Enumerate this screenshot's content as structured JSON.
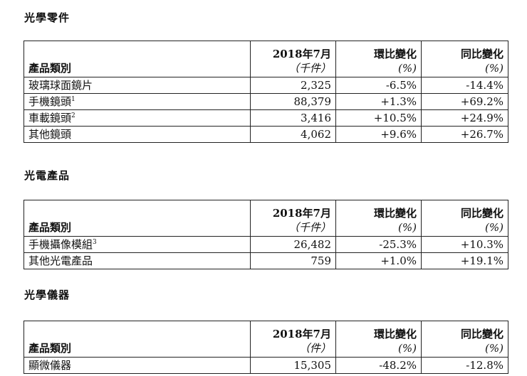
{
  "headers": {
    "category": "產品類別",
    "month": "2018年7月",
    "unit_k": "（千件）",
    "unit_pcs": "（件）",
    "mom": "環比變化",
    "yoy": "同比變化",
    "pct": "(%)"
  },
  "sections": [
    {
      "title": "光學零件",
      "rows": [
        {
          "name": "玻璃球面鏡片",
          "note": "",
          "value": "2,325",
          "mom": "-6.5%",
          "yoy": "-14.4%"
        },
        {
          "name": "手機鏡頭",
          "note": "1",
          "value": "88,379",
          "mom": "+1.3%",
          "yoy": "+69.2%"
        },
        {
          "name": "車載鏡頭",
          "note": "2",
          "value": "3,416",
          "mom": "+10.5%",
          "yoy": "+24.9%"
        },
        {
          "name": "其他鏡頭",
          "note": "",
          "value": "4,062",
          "mom": "+9.6%",
          "yoy": "+26.7%"
        }
      ]
    },
    {
      "title": "光電產品",
      "rows": [
        {
          "name": "手機攝像模組",
          "note": "3",
          "value": "26,482",
          "mom": "-25.3%",
          "yoy": "+10.3%"
        },
        {
          "name": "其他光電產品",
          "note": "",
          "value": "759",
          "mom": "+1.0%",
          "yoy": "+19.1%"
        }
      ]
    },
    {
      "title": "光學儀器",
      "rows": [
        {
          "name": "顯微儀器",
          "note": "",
          "value": "15,305",
          "mom": "-48.2%",
          "yoy": "-12.8%"
        }
      ]
    }
  ]
}
